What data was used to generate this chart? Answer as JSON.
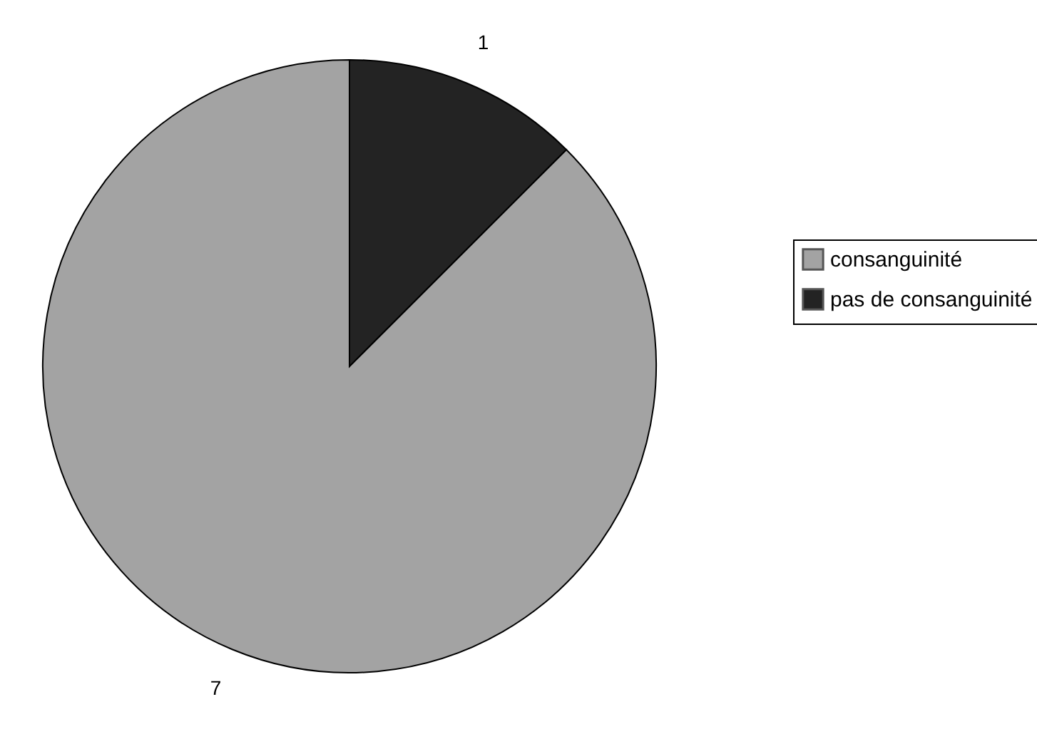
{
  "chart_data": {
    "type": "pie",
    "categories": [
      "consanguinité",
      "pas de consanguinité"
    ],
    "values": [
      7,
      1
    ],
    "colors": [
      "#a3a3a3",
      "#232323"
    ],
    "data_labels": true,
    "legend": "right"
  }
}
